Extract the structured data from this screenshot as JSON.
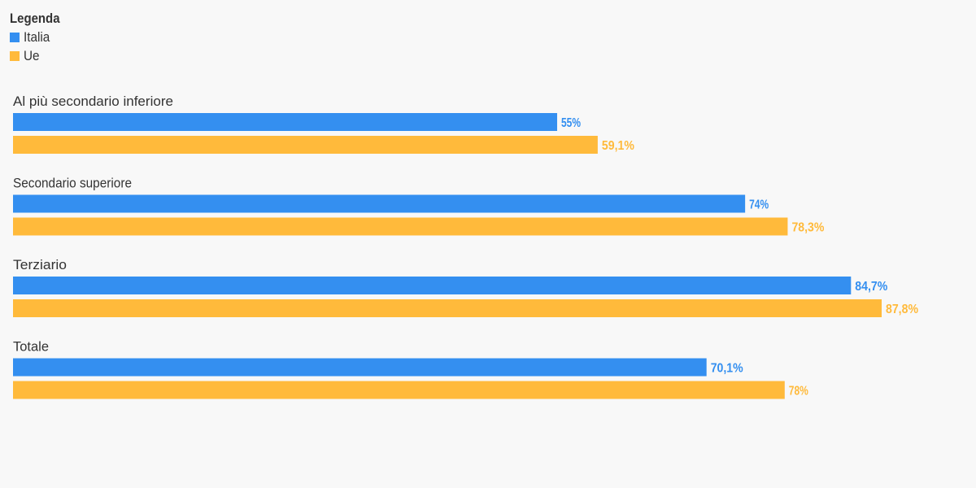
{
  "legend": {
    "title": "Legenda",
    "items": [
      {
        "label": "Italia",
        "color": "#348ff0"
      },
      {
        "label": "Ue",
        "color": "#ffba3b"
      }
    ]
  },
  "chart_data": {
    "type": "bar",
    "orientation": "horizontal",
    "categories": [
      "Al più secondario inferiore",
      "Secondario superiore",
      "Terziario",
      "Totale"
    ],
    "series": [
      {
        "name": "Italia",
        "color": "#348ff0",
        "values": [
          55,
          74,
          84.7,
          70.1
        ],
        "labels": [
          "55%",
          "74%",
          "84,7%",
          "70,1%"
        ]
      },
      {
        "name": "Ue",
        "color": "#ffba3b",
        "values": [
          59.1,
          78.3,
          87.8,
          78
        ],
        "labels": [
          "59,1%",
          "78,3%",
          "87,8%",
          "78%"
        ]
      }
    ],
    "xlim": [
      0,
      100
    ],
    "legend_position": "top-left",
    "grid": false
  }
}
